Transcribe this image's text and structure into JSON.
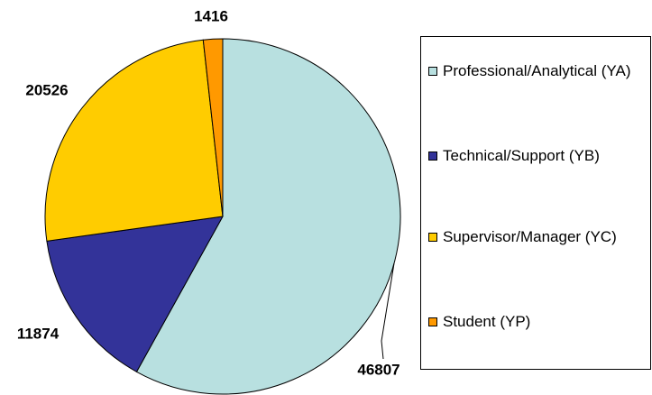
{
  "chart_data": {
    "type": "pie",
    "categories": [
      "Professional/Analytical (YA)",
      "Technical/Support (YB)",
      "Supervisor/Manager (YC)",
      "Student (YP)"
    ],
    "values": [
      46807,
      11874,
      20526,
      1416
    ],
    "colors": [
      "#b8e0e0",
      "#333399",
      "#ffcc00",
      "#ff9900"
    ],
    "legend": "right"
  }
}
